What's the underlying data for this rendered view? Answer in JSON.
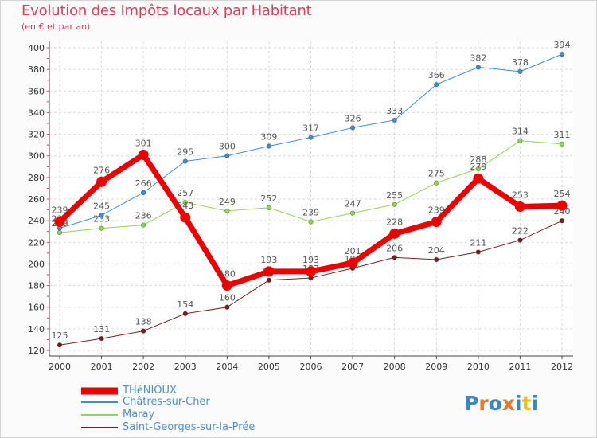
{
  "header": {
    "title": "Evolution des Impôts locaux par Habitant",
    "subtitle": "(en € et par an)"
  },
  "logo": {
    "text": "Proxiti",
    "colors": [
      "#3b86c8",
      "#e8762b",
      "#3b86c8",
      "#e8762b",
      "#3b86c8",
      "#e8c21a",
      "#3b86c8"
    ]
  },
  "colors": {
    "background": "#fbfbfb",
    "grid": "#d9d9d9",
    "title": "#df3a5a",
    "legend_text": "#4a8fd0"
  },
  "chart_data": {
    "type": "line",
    "title": "Evolution des Impôts locaux par Habitant",
    "subtitle": "(en € et par an)",
    "xlabel": "",
    "ylabel": "",
    "x": [
      "2000",
      "2001",
      "2002",
      "2003",
      "2004",
      "2005",
      "2006",
      "2007",
      "2008",
      "2009",
      "2010",
      "2011",
      "2012"
    ],
    "ylim": [
      120,
      400
    ],
    "yticks": [
      "120",
      "140",
      "160",
      "180",
      "200",
      "220",
      "240",
      "260",
      "280",
      "300",
      "320",
      "340",
      "360",
      "380",
      "400"
    ],
    "grid": true,
    "legend_position": "bottom-left",
    "series": [
      {
        "name": "THéNIOUX",
        "color": "#ee0000",
        "values": [
          239,
          276,
          301,
          243,
          180,
          193,
          193,
          201,
          228,
          239,
          279,
          253,
          254
        ],
        "labels": [
          "239",
          "276",
          "301",
          "243",
          "180",
          "193",
          "193",
          "201",
          "228",
          "239",
          "279",
          "253",
          "254"
        ]
      },
      {
        "name": "Châtres-sur-Cher",
        "color": "#3d8ed8",
        "values": [
          233,
          245,
          266,
          295,
          300,
          309,
          317,
          326,
          333,
          366,
          382,
          378,
          394
        ],
        "labels": [
          "233",
          "245",
          "266",
          "295",
          "300",
          "309",
          "317",
          "326",
          "333",
          "366",
          "382",
          "378",
          "394"
        ]
      },
      {
        "name": "Maray",
        "color": "#8fd64e",
        "values": [
          229,
          233,
          236,
          257,
          249,
          252,
          239,
          247,
          255,
          275,
          288,
          314,
          311
        ],
        "labels": [
          "229",
          "233",
          "236",
          "257",
          "249",
          "252",
          "239",
          "247",
          "255",
          "275",
          "288",
          "314",
          "311"
        ]
      },
      {
        "name": "Saint-Georges-sur-la-Prée",
        "color": "#7a1f1f",
        "values": [
          125,
          131,
          138,
          154,
          160,
          185,
          187,
          196,
          206,
          204,
          211,
          222,
          240
        ],
        "labels": [
          "125",
          "131",
          "138",
          "154",
          "160",
          "185",
          "187",
          "196",
          "206",
          "204",
          "211",
          "222",
          "240"
        ]
      }
    ]
  }
}
